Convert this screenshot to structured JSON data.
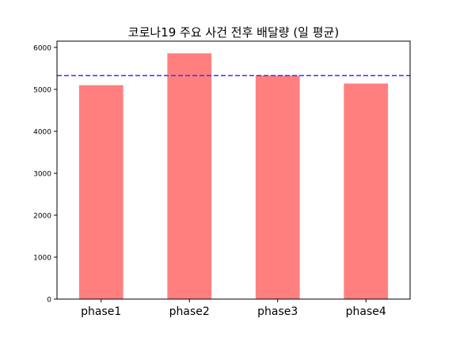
{
  "chart_data": {
    "type": "bar",
    "title": "코로나19 주요 사건 전후 배달량 (일 평균)",
    "categories": [
      "phase1",
      "phase2",
      "phase3",
      "phase4"
    ],
    "values": [
      5100,
      5860,
      5330,
      5140
    ],
    "ylim": [
      0,
      6150
    ],
    "yticks": [
      0,
      1000,
      2000,
      3000,
      4000,
      5000,
      6000
    ],
    "xlabel": "",
    "ylabel": "",
    "grid": false,
    "bar_color": "#ff7f7f",
    "reference_line": {
      "value": 5330,
      "style": "dashed",
      "color": "#3333ff"
    }
  }
}
